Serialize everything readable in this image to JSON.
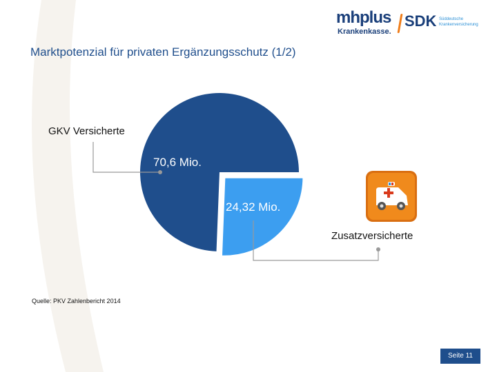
{
  "header": {
    "title": "Marktpotenzial für privaten Ergänzungsschutz (1/2)",
    "logo_mhplus_main": "mhplus",
    "logo_mhplus_sub": "Krankenkasse.",
    "logo_sdk_main": "SDK",
    "logo_sdk_sub": "Süddeutsche Krankenversicherung"
  },
  "chart_data": {
    "type": "pie",
    "unit": "Mio.",
    "slices": [
      {
        "name": "GKV Versicherte",
        "value": 70.6,
        "value_label": "70,6 Mio.",
        "color": "#1f4e8c"
      },
      {
        "name": "Zusatzversicherte",
        "value": 24.32,
        "value_label": "24,32 Mio.",
        "color": "#3c9ef0",
        "exploded": true
      }
    ]
  },
  "annotations": {
    "gkv_label": "GKV Versicherte",
    "zusatz_label": "Zusatzversicherte"
  },
  "icons": {
    "zusatz": "ambulance-icon"
  },
  "colors": {
    "accent": "#1f4e8c",
    "highlight": "#3c9ef0",
    "icon_orange": "#f08a1c"
  },
  "footer": {
    "source": "Quelle: PKV Zahlenbericht 2014",
    "page": "Seite 11"
  }
}
